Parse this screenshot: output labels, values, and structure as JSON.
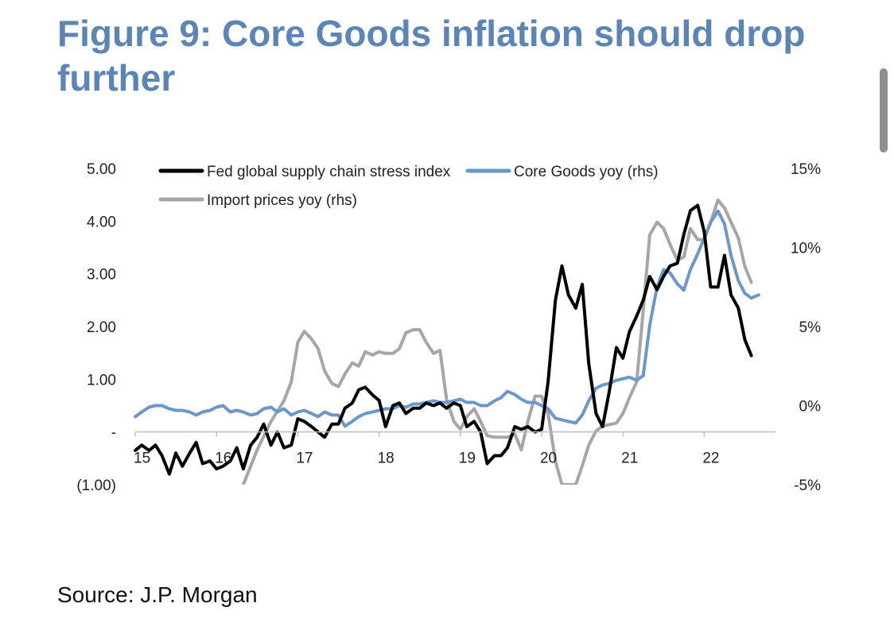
{
  "title": "Figure 9: Core Goods inflation should drop further",
  "source": "Source: J.P. Morgan",
  "colors": {
    "title": "#5b84b8",
    "fed": "#000000",
    "core": "#6a97cc",
    "import": "#a6a6a6"
  },
  "chart_data": {
    "type": "line",
    "title": "Figure 9: Core Goods inflation should drop further",
    "xlabel": "",
    "ylabel_left": "",
    "ylabel_right": "",
    "grid": false,
    "legend_placement": "top",
    "left_axis": {
      "ylim": [
        -1,
        5
      ],
      "ticks": [
        "(1.00)",
        "-",
        "1.00",
        "2.00",
        "3.00",
        "4.00",
        "5.00"
      ]
    },
    "right_axis": {
      "ylim": [
        -5,
        15
      ],
      "ticks": [
        "-5%",
        "0%",
        "5%",
        "10%",
        "15%"
      ]
    },
    "x_ticks": [
      "15",
      "16",
      "17",
      "18",
      "19",
      "20",
      "21",
      "22"
    ],
    "x_range": [
      2015.0,
      2022.75
    ],
    "series": [
      {
        "name": "Fed global supply chain stress index",
        "axis": "left",
        "color": "#000000",
        "points": [
          [
            2015.0,
            -0.35
          ],
          [
            2015.08,
            -0.25
          ],
          [
            2015.17,
            -0.35
          ],
          [
            2015.25,
            -0.25
          ],
          [
            2015.33,
            -0.45
          ],
          [
            2015.42,
            -0.8
          ],
          [
            2015.5,
            -0.4
          ],
          [
            2015.58,
            -0.65
          ],
          [
            2015.67,
            -0.4
          ],
          [
            2015.75,
            -0.2
          ],
          [
            2015.83,
            -0.6
          ],
          [
            2015.92,
            -0.55
          ],
          [
            2016.0,
            -0.7
          ],
          [
            2016.08,
            -0.65
          ],
          [
            2016.17,
            -0.55
          ],
          [
            2016.25,
            -0.3
          ],
          [
            2016.33,
            -0.7
          ],
          [
            2016.42,
            -0.25
          ],
          [
            2016.5,
            -0.1
          ],
          [
            2016.58,
            0.15
          ],
          [
            2016.67,
            -0.25
          ],
          [
            2016.75,
            0.0
          ],
          [
            2016.83,
            -0.3
          ],
          [
            2016.92,
            -0.25
          ],
          [
            2017.0,
            0.25
          ],
          [
            2017.08,
            0.2
          ],
          [
            2017.17,
            0.1
          ],
          [
            2017.25,
            0.0
          ],
          [
            2017.33,
            -0.1
          ],
          [
            2017.42,
            0.15
          ],
          [
            2017.5,
            0.15
          ],
          [
            2017.58,
            0.45
          ],
          [
            2017.67,
            0.55
          ],
          [
            2017.75,
            0.8
          ],
          [
            2017.83,
            0.85
          ],
          [
            2017.92,
            0.7
          ],
          [
            2018.0,
            0.6
          ],
          [
            2018.08,
            0.1
          ],
          [
            2018.17,
            0.5
          ],
          [
            2018.25,
            0.55
          ],
          [
            2018.33,
            0.35
          ],
          [
            2018.42,
            0.45
          ],
          [
            2018.5,
            0.45
          ],
          [
            2018.58,
            0.55
          ],
          [
            2018.67,
            0.5
          ],
          [
            2018.75,
            0.55
          ],
          [
            2018.83,
            0.45
          ],
          [
            2018.92,
            0.55
          ],
          [
            2019.0,
            0.5
          ],
          [
            2019.08,
            0.1
          ],
          [
            2019.17,
            0.2
          ],
          [
            2019.25,
            0.0
          ],
          [
            2019.33,
            -0.6
          ],
          [
            2019.42,
            -0.45
          ],
          [
            2019.5,
            -0.45
          ],
          [
            2019.58,
            -0.3
          ],
          [
            2019.67,
            0.1
          ],
          [
            2019.75,
            0.05
          ],
          [
            2019.83,
            0.1
          ],
          [
            2019.92,
            0.0
          ],
          [
            2020.0,
            0.05
          ],
          [
            2020.08,
            0.95
          ],
          [
            2020.17,
            2.5
          ],
          [
            2020.25,
            3.15
          ],
          [
            2020.33,
            2.6
          ],
          [
            2020.42,
            2.35
          ],
          [
            2020.5,
            2.8
          ],
          [
            2020.58,
            1.3
          ],
          [
            2020.67,
            0.35
          ],
          [
            2020.75,
            0.1
          ],
          [
            2020.83,
            0.75
          ],
          [
            2020.92,
            1.6
          ],
          [
            2021.0,
            1.4
          ],
          [
            2021.08,
            1.9
          ],
          [
            2021.17,
            2.2
          ],
          [
            2021.25,
            2.5
          ],
          [
            2021.33,
            2.95
          ],
          [
            2021.42,
            2.7
          ],
          [
            2021.5,
            2.95
          ],
          [
            2021.58,
            3.15
          ],
          [
            2021.67,
            3.2
          ],
          [
            2021.75,
            3.75
          ],
          [
            2021.83,
            4.2
          ],
          [
            2021.92,
            4.3
          ],
          [
            2022.0,
            3.8
          ],
          [
            2022.08,
            2.75
          ],
          [
            2022.17,
            2.75
          ],
          [
            2022.25,
            3.35
          ],
          [
            2022.33,
            2.6
          ],
          [
            2022.42,
            2.35
          ],
          [
            2022.5,
            1.75
          ],
          [
            2022.58,
            1.45
          ]
        ]
      },
      {
        "name": "Core Goods yoy (rhs)",
        "axis": "right",
        "color": "#6a97cc",
        "points": [
          [
            2015.0,
            -0.7
          ],
          [
            2015.08,
            -0.4
          ],
          [
            2015.17,
            -0.1
          ],
          [
            2015.25,
            0.0
          ],
          [
            2015.33,
            0.0
          ],
          [
            2015.42,
            -0.2
          ],
          [
            2015.5,
            -0.3
          ],
          [
            2015.58,
            -0.3
          ],
          [
            2015.67,
            -0.4
          ],
          [
            2015.75,
            -0.6
          ],
          [
            2015.83,
            -0.4
          ],
          [
            2015.92,
            -0.3
          ],
          [
            2016.0,
            -0.1
          ],
          [
            2016.08,
            0.0
          ],
          [
            2016.17,
            -0.4
          ],
          [
            2016.25,
            -0.3
          ],
          [
            2016.33,
            -0.4
          ],
          [
            2016.42,
            -0.6
          ],
          [
            2016.5,
            -0.5
          ],
          [
            2016.58,
            -0.2
          ],
          [
            2016.67,
            -0.1
          ],
          [
            2016.75,
            -0.4
          ],
          [
            2016.83,
            -0.2
          ],
          [
            2016.92,
            -0.6
          ],
          [
            2017.0,
            -0.4
          ],
          [
            2017.08,
            -0.3
          ],
          [
            2017.17,
            -0.5
          ],
          [
            2017.25,
            -0.7
          ],
          [
            2017.33,
            -0.4
          ],
          [
            2017.42,
            -0.6
          ],
          [
            2017.5,
            -0.6
          ],
          [
            2017.58,
            -1.3
          ],
          [
            2017.67,
            -1.0
          ],
          [
            2017.75,
            -0.7
          ],
          [
            2017.83,
            -0.5
          ],
          [
            2017.92,
            -0.4
          ],
          [
            2018.0,
            -0.3
          ],
          [
            2018.08,
            -0.2
          ],
          [
            2018.17,
            -0.2
          ],
          [
            2018.25,
            0.0
          ],
          [
            2018.33,
            -0.1
          ],
          [
            2018.42,
            0.1
          ],
          [
            2018.5,
            0.1
          ],
          [
            2018.58,
            0.2
          ],
          [
            2018.67,
            0.3
          ],
          [
            2018.75,
            0.2
          ],
          [
            2018.83,
            0.2
          ],
          [
            2018.92,
            0.3
          ],
          [
            2019.0,
            0.4
          ],
          [
            2019.08,
            0.2
          ],
          [
            2019.17,
            0.2
          ],
          [
            2019.25,
            0.0
          ],
          [
            2019.33,
            0.0
          ],
          [
            2019.42,
            0.3
          ],
          [
            2019.5,
            0.5
          ],
          [
            2019.58,
            0.9
          ],
          [
            2019.67,
            0.7
          ],
          [
            2019.75,
            0.4
          ],
          [
            2019.83,
            0.2
          ],
          [
            2019.92,
            0.2
          ],
          [
            2020.0,
            0.0
          ],
          [
            2020.08,
            -0.2
          ],
          [
            2020.17,
            -0.8
          ],
          [
            2020.25,
            -0.9
          ],
          [
            2020.33,
            -1.0
          ],
          [
            2020.42,
            -1.1
          ],
          [
            2020.5,
            -0.6
          ],
          [
            2020.58,
            0.3
          ],
          [
            2020.67,
            1.1
          ],
          [
            2020.75,
            1.3
          ],
          [
            2020.83,
            1.4
          ],
          [
            2020.92,
            1.6
          ],
          [
            2021.0,
            1.7
          ],
          [
            2021.08,
            1.8
          ],
          [
            2021.17,
            1.6
          ],
          [
            2021.25,
            1.9
          ],
          [
            2021.33,
            5.1
          ],
          [
            2021.42,
            7.5
          ],
          [
            2021.5,
            8.6
          ],
          [
            2021.58,
            8.4
          ],
          [
            2021.67,
            7.7
          ],
          [
            2021.75,
            7.3
          ],
          [
            2021.83,
            8.6
          ],
          [
            2021.92,
            9.6
          ],
          [
            2022.0,
            10.6
          ],
          [
            2022.08,
            11.6
          ],
          [
            2022.17,
            12.3
          ],
          [
            2022.25,
            11.5
          ],
          [
            2022.33,
            9.5
          ],
          [
            2022.42,
            7.9
          ],
          [
            2022.5,
            7.1
          ],
          [
            2022.58,
            6.8
          ],
          [
            2022.67,
            7.0
          ]
        ]
      },
      {
        "name": "Import prices yoy (rhs)",
        "axis": "right",
        "color": "#a6a6a6",
        "points": [
          [
            2016.33,
            -5.0
          ],
          [
            2016.5,
            -2.8
          ],
          [
            2016.67,
            -1.0
          ],
          [
            2016.83,
            0.3
          ],
          [
            2016.92,
            1.5
          ],
          [
            2017.0,
            4.0
          ],
          [
            2017.08,
            4.7
          ],
          [
            2017.17,
            4.2
          ],
          [
            2017.25,
            3.6
          ],
          [
            2017.33,
            2.2
          ],
          [
            2017.42,
            1.4
          ],
          [
            2017.5,
            1.2
          ],
          [
            2017.58,
            2.0
          ],
          [
            2017.67,
            2.7
          ],
          [
            2017.75,
            2.5
          ],
          [
            2017.83,
            3.4
          ],
          [
            2017.92,
            3.2
          ],
          [
            2018.0,
            3.4
          ],
          [
            2018.08,
            3.3
          ],
          [
            2018.17,
            3.3
          ],
          [
            2018.25,
            3.6
          ],
          [
            2018.33,
            4.6
          ],
          [
            2018.42,
            4.8
          ],
          [
            2018.5,
            4.8
          ],
          [
            2018.58,
            4.0
          ],
          [
            2018.67,
            3.3
          ],
          [
            2018.75,
            3.5
          ],
          [
            2018.83,
            0.4
          ],
          [
            2018.92,
            -1.0
          ],
          [
            2019.0,
            -1.5
          ],
          [
            2019.08,
            -0.7
          ],
          [
            2019.17,
            -0.2
          ],
          [
            2019.25,
            -1.0
          ],
          [
            2019.33,
            -1.9
          ],
          [
            2019.42,
            -2.0
          ],
          [
            2019.5,
            -2.0
          ],
          [
            2019.58,
            -2.0
          ],
          [
            2019.67,
            -1.8
          ],
          [
            2019.75,
            -2.8
          ],
          [
            2019.83,
            -1.0
          ],
          [
            2019.92,
            0.6
          ],
          [
            2020.0,
            0.6
          ],
          [
            2020.08,
            -0.5
          ],
          [
            2020.17,
            -3.5
          ],
          [
            2020.25,
            -5.0
          ],
          [
            2020.42,
            -5.0
          ],
          [
            2020.5,
            -3.8
          ],
          [
            2020.58,
            -2.5
          ],
          [
            2020.67,
            -1.6
          ],
          [
            2020.75,
            -1.3
          ],
          [
            2020.83,
            -1.2
          ],
          [
            2020.92,
            -1.1
          ],
          [
            2021.0,
            -0.5
          ],
          [
            2021.08,
            0.5
          ],
          [
            2021.17,
            1.5
          ],
          [
            2021.25,
            6.0
          ],
          [
            2021.33,
            10.8
          ],
          [
            2021.42,
            11.6
          ],
          [
            2021.5,
            11.2
          ],
          [
            2021.58,
            10.2
          ],
          [
            2021.67,
            9.2
          ],
          [
            2021.75,
            9.4
          ],
          [
            2021.83,
            11.2
          ],
          [
            2021.92,
            10.5
          ],
          [
            2022.0,
            10.5
          ],
          [
            2022.08,
            11.6
          ],
          [
            2022.17,
            13.0
          ],
          [
            2022.25,
            12.5
          ],
          [
            2022.33,
            11.6
          ],
          [
            2022.42,
            10.6
          ],
          [
            2022.5,
            8.8
          ],
          [
            2022.58,
            7.8
          ]
        ]
      }
    ]
  }
}
